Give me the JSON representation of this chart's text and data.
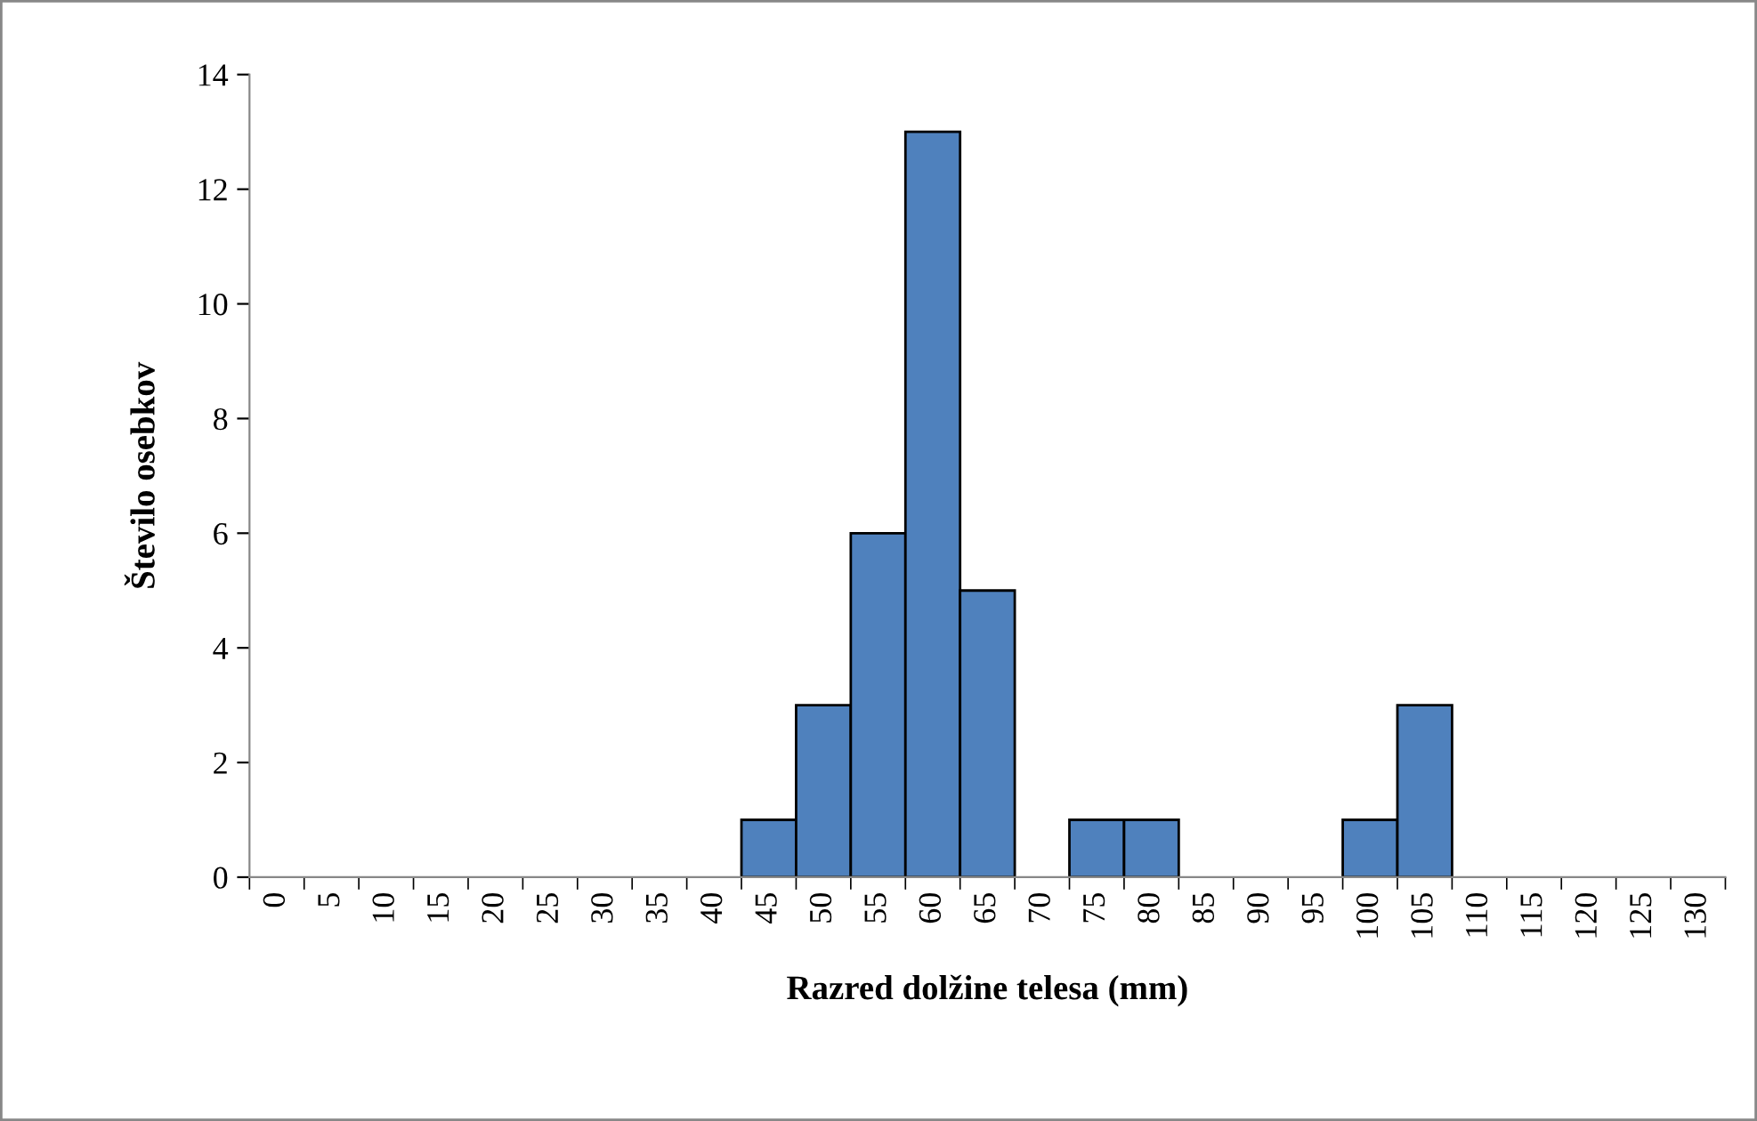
{
  "chart_data": {
    "type": "bar",
    "xlabel": "Razred dolžine telesa (mm)",
    "ylabel": "Število osebkov",
    "categories": [
      "0",
      "5",
      "10",
      "15",
      "20",
      "25",
      "30",
      "35",
      "40",
      "45",
      "50",
      "55",
      "60",
      "65",
      "70",
      "75",
      "80",
      "85",
      "90",
      "95",
      "100",
      "105",
      "110",
      "115",
      "120",
      "125",
      "130"
    ],
    "values": [
      0,
      0,
      0,
      0,
      0,
      0,
      0,
      0,
      0,
      1,
      3,
      6,
      13,
      5,
      0,
      1,
      1,
      0,
      0,
      0,
      1,
      3,
      0,
      0,
      0,
      0,
      0
    ],
    "color": "#4f81bd",
    "ylim": [
      0,
      14
    ],
    "yticks": [
      0,
      2,
      4,
      6,
      8,
      10,
      12,
      14
    ],
    "grid": false,
    "legend": false
  }
}
